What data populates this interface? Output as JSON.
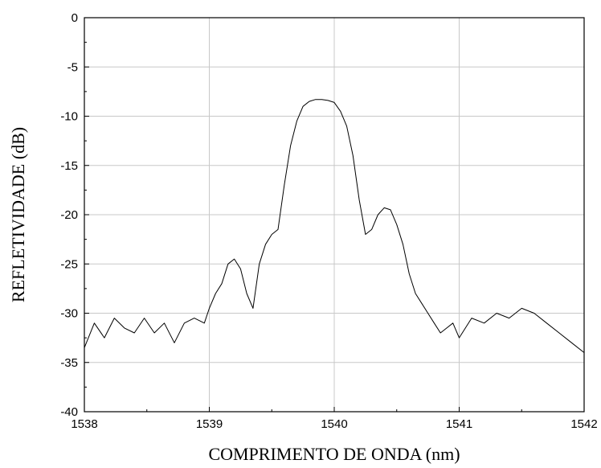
{
  "chart_data": {
    "type": "line",
    "title": "",
    "xlabel": "COMPRIMENTO DE ONDA (nm)",
    "ylabel": "REFLETIVIDADE (dB)",
    "xlim": [
      1538,
      1542
    ],
    "ylim": [
      -40,
      0
    ],
    "x_ticks": [
      1538,
      1539,
      1540,
      1541,
      1542
    ],
    "x_tick_labels": [
      "1538",
      "1539",
      "1540",
      "1541",
      "1542"
    ],
    "y_ticks": [
      0,
      -5,
      -10,
      -15,
      -20,
      -25,
      -30,
      -35,
      -40
    ],
    "y_tick_labels": [
      "0",
      "-5",
      "-10",
      "-15",
      "-20",
      "-25",
      "-30",
      "-35",
      "-40"
    ],
    "grid": true,
    "line_color": "#000000",
    "grid_color": "#c8c8c8",
    "series": [
      {
        "x": [
          1538.0,
          1538.08,
          1538.16,
          1538.24,
          1538.32,
          1538.4,
          1538.48,
          1538.56,
          1538.64,
          1538.72,
          1538.8,
          1538.88,
          1538.96,
          1539.0,
          1539.05,
          1539.1,
          1539.15,
          1539.2,
          1539.25,
          1539.3,
          1539.35,
          1539.4,
          1539.45,
          1539.5,
          1539.55,
          1539.6,
          1539.65,
          1539.7,
          1539.75,
          1539.8,
          1539.85,
          1539.9,
          1539.95,
          1540.0,
          1540.05,
          1540.1,
          1540.15,
          1540.2,
          1540.25,
          1540.3,
          1540.35,
          1540.4,
          1540.45,
          1540.5,
          1540.55,
          1540.6,
          1540.65,
          1540.7,
          1540.75,
          1540.8,
          1540.85,
          1540.9,
          1540.95,
          1541.0,
          1541.1,
          1541.2,
          1541.3,
          1541.4,
          1541.5,
          1541.6,
          1541.7,
          1541.8,
          1541.9,
          1542.0
        ],
        "y": [
          -33.5,
          -31.0,
          -32.5,
          -30.5,
          -31.5,
          -32.0,
          -30.5,
          -32.0,
          -31.0,
          -33.0,
          -31.0,
          -30.5,
          -31.0,
          -29.5,
          -28.0,
          -27.0,
          -25.0,
          -24.5,
          -25.5,
          -28.0,
          -29.5,
          -25.0,
          -23.0,
          -22.0,
          -21.5,
          -17.0,
          -13.0,
          -10.5,
          -9.0,
          -8.5,
          -8.3,
          -8.3,
          -8.4,
          -8.6,
          -9.5,
          -11.0,
          -14.0,
          -18.5,
          -22.0,
          -21.5,
          -20.0,
          -19.3,
          -19.5,
          -21.0,
          -23.0,
          -26.0,
          -28.0,
          -29.0,
          -30.0,
          -31.0,
          -32.0,
          -31.5,
          -31.0,
          -32.5,
          -30.5,
          -31.0,
          -30.0,
          -30.5,
          -29.5,
          -30.0,
          -31.0,
          -32.0,
          -33.0,
          -34.0
        ]
      }
    ]
  }
}
